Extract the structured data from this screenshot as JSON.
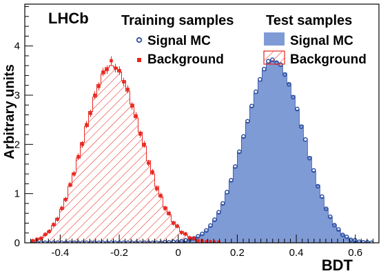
{
  "chart_data": {
    "type": "histogram",
    "experiment_label": "LHCb",
    "xlabel": "BDT",
    "ylabel": "Arbitrary units",
    "xlim": [
      -0.52,
      0.68
    ],
    "ylim": [
      0,
      4.85
    ],
    "x_ticks": [
      "-0.4",
      "-0.2",
      "0",
      "0.2",
      "0.4",
      "0.6"
    ],
    "x_tick_values": [
      -0.4,
      -0.2,
      0,
      0.2,
      0.4,
      0.6
    ],
    "y_ticks": [
      "0",
      "1",
      "2",
      "3",
      "4"
    ],
    "y_tick_values": [
      0,
      1,
      2,
      3,
      4
    ],
    "bin_edges_start": -0.5,
    "bin_width": 0.014,
    "legend": {
      "training_header": "Training samples",
      "test_header": "Test samples",
      "training_signal_label": "Signal MC",
      "training_background_label": "Background",
      "test_signal_label": "Signal MC",
      "test_background_label": "Background"
    },
    "colors": {
      "signal": "#2d4ea0",
      "signal_fill": "#7f9bd6",
      "background": "#e8251f"
    },
    "series": [
      {
        "name": "Test samples: Signal MC",
        "style": "filled-histogram",
        "values": [
          0,
          0,
          0,
          0,
          0,
          0,
          0,
          0,
          0,
          0,
          0,
          0,
          0,
          0,
          0,
          0,
          0,
          0,
          0,
          0,
          0,
          0,
          0,
          0,
          0,
          0,
          0,
          0,
          0,
          0,
          0,
          0,
          0.01,
          0.01,
          0.01,
          0.02,
          0.03,
          0.04,
          0.06,
          0.08,
          0.12,
          0.17,
          0.24,
          0.33,
          0.45,
          0.6,
          0.78,
          1.0,
          1.25,
          1.53,
          1.83,
          2.14,
          2.45,
          2.76,
          3.04,
          3.29,
          3.5,
          3.65,
          3.7,
          3.68,
          3.6,
          3.45,
          3.24,
          2.99,
          2.7,
          2.39,
          2.07,
          1.75,
          1.45,
          1.17,
          0.92,
          0.7,
          0.52,
          0.37,
          0.26,
          0.17,
          0.11,
          0.07,
          0.04,
          0.02,
          0.01,
          0.01,
          0
        ]
      },
      {
        "name": "Test samples: Background",
        "style": "hatched-histogram",
        "values": [
          0.04,
          0.06,
          0.1,
          0.16,
          0.24,
          0.35,
          0.5,
          0.68,
          0.9,
          1.15,
          1.42,
          1.72,
          2.04,
          2.36,
          2.67,
          2.96,
          3.22,
          3.43,
          3.56,
          3.6,
          3.57,
          3.47,
          3.3,
          3.08,
          2.82,
          2.54,
          2.25,
          1.96,
          1.67,
          1.4,
          1.15,
          0.93,
          0.73,
          0.57,
          0.43,
          0.32,
          0.23,
          0.16,
          0.11,
          0.08,
          0.05,
          0.03,
          0.02,
          0.01,
          0.01,
          0,
          0,
          0,
          0,
          0,
          0,
          0,
          0,
          0,
          0,
          0,
          0,
          0,
          0,
          0,
          0,
          0,
          0,
          0,
          0,
          0,
          0,
          0,
          0,
          0,
          0,
          0,
          0,
          0,
          0,
          0,
          0,
          0,
          0,
          0,
          0,
          0,
          0,
          0,
          0,
          0
        ]
      },
      {
        "name": "Training samples: Signal MC",
        "style": "open-circle-markers",
        "values": [
          0,
          0,
          0,
          0,
          0,
          0,
          0,
          0,
          0,
          0,
          0,
          0,
          0,
          0,
          0,
          0,
          0,
          0,
          0,
          0,
          0,
          0,
          0,
          0,
          0,
          0,
          0,
          0,
          0,
          0,
          0,
          0,
          0.01,
          0.01,
          0.02,
          0.02,
          0.03,
          0.05,
          0.07,
          0.09,
          0.13,
          0.18,
          0.25,
          0.35,
          0.47,
          0.62,
          0.8,
          1.03,
          1.27,
          1.55,
          1.85,
          2.16,
          2.47,
          2.78,
          3.07,
          3.32,
          3.53,
          3.69,
          3.72,
          3.66,
          3.62,
          3.42,
          3.22,
          2.96,
          2.72,
          2.36,
          2.1,
          1.72,
          1.47,
          1.15,
          0.94,
          0.69,
          0.53,
          0.36,
          0.27,
          0.16,
          0.12,
          0.06,
          0.05,
          0.02,
          0.01,
          0.01,
          0
        ]
      },
      {
        "name": "Training samples: Background",
        "style": "square-markers-with-errors",
        "values": [
          0.04,
          0.07,
          0.09,
          0.17,
          0.23,
          0.37,
          0.48,
          0.7,
          0.88,
          1.18,
          1.4,
          1.75,
          2.0,
          2.4,
          2.63,
          3.0,
          3.18,
          3.47,
          3.52,
          3.7,
          3.55,
          3.5,
          3.27,
          3.12,
          2.78,
          2.58,
          2.21,
          2.0,
          1.62,
          1.44,
          1.1,
          0.96,
          0.7,
          0.6,
          0.4,
          0.34,
          0.21,
          0.18,
          0.1,
          0.09,
          0.04,
          0.04,
          0.02,
          0.02,
          0.01,
          0.01,
          0,
          0,
          0,
          0,
          0,
          0,
          0,
          0,
          0,
          0,
          0,
          0,
          0,
          0,
          0,
          0,
          0,
          0,
          0,
          0,
          0,
          0,
          0,
          0,
          0,
          0,
          0,
          0,
          0,
          0,
          0,
          0,
          0,
          0,
          0,
          0,
          0,
          0,
          0,
          0
        ]
      }
    ]
  }
}
